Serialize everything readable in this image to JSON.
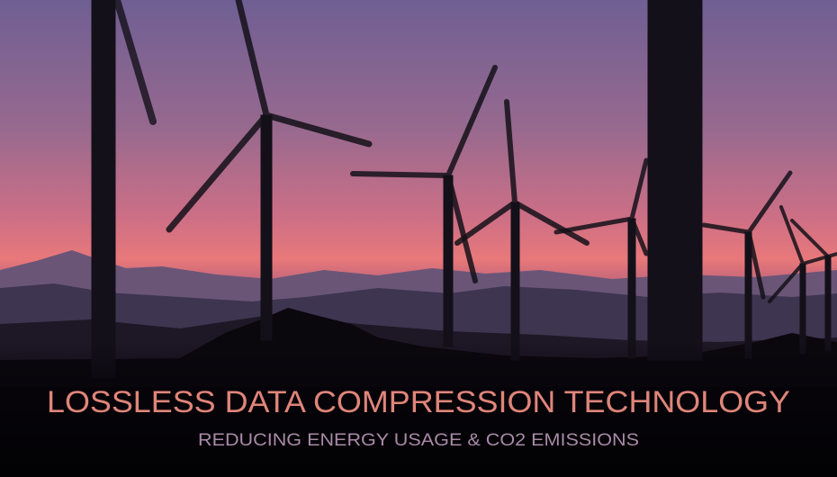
{
  "banner": {
    "title": "LOSSLESS DATA COMPRESSION TECHNOLOGY",
    "subtitle": "REDUCING ENERGY USAGE & CO2 EMISSIONS"
  },
  "colors": {
    "title": "#e0857a",
    "subtitle": "#a98aa8",
    "sky_top": "#6f5f93",
    "sky_horizon": "#e8787a",
    "ground": "#050308"
  }
}
